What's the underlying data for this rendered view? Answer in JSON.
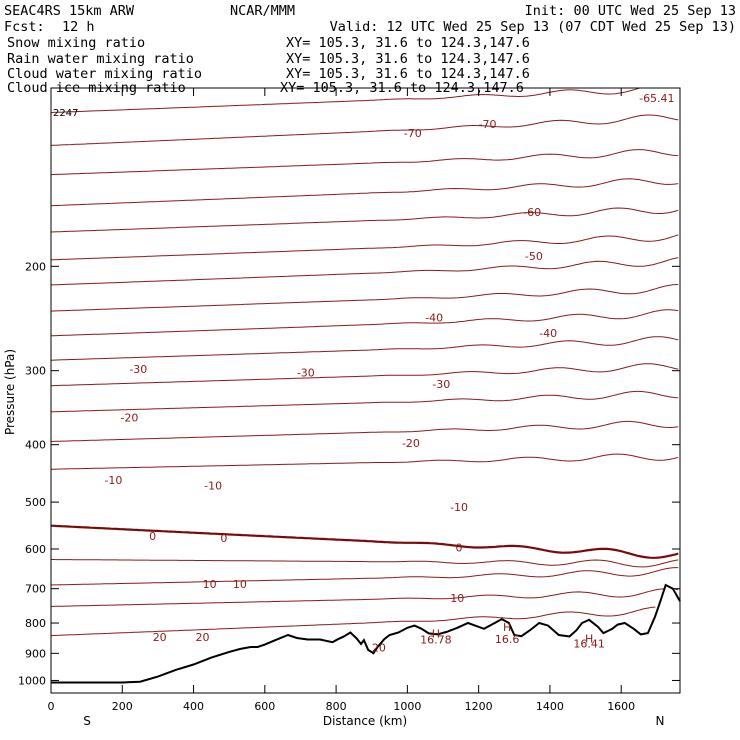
{
  "header": {
    "model": "SEAC4RS 15km ARW",
    "org": "NCAR/MMM",
    "init": "Init: 00 UTC Wed 25 Sep 13",
    "fcst_label": "Fcst:",
    "fcst_value": "12 h",
    "valid": "Valid: 12 UTC Wed 25 Sep 13 (07 CDT Wed 25 Sep 13)"
  },
  "legend": [
    {
      "name": "Snow mixing ratio",
      "xy": "XY= 105.3, 31.6 to 124.3,147.6",
      "color": "#000000"
    },
    {
      "name": "Rain water mixing ratio",
      "xy": "XY= 105.3, 31.6 to 124.3,147.6",
      "color": "#e00000"
    },
    {
      "name": "Cloud water mixing ratio",
      "xy": "XY= 105.3, 31.6 to 124.3,147.6",
      "color": "#0000e0"
    },
    {
      "name": "Cloud ice mixing ratio",
      "xy": "XY= 105.3, 31.6 to 124.3,147.6",
      "color": "#000000"
    }
  ],
  "chart_data": {
    "type": "line",
    "xlabel": "Distance (km)",
    "ylabel": "Pressure (hPa)",
    "xlim": [
      0,
      1765
    ],
    "ylim": [
      1050,
      100
    ],
    "y_scale": "log",
    "x_ticks": [
      0,
      200,
      400,
      600,
      800,
      1000,
      1200,
      1400,
      1600
    ],
    "y_ticks": [
      200,
      300,
      400,
      500,
      600,
      700,
      800,
      900,
      1000
    ],
    "x_end_labels": {
      "left": "S",
      "right": "N"
    },
    "corner_label": "2247",
    "line_color": "#8b1a1a",
    "zero_line_color": "#7a0a0a",
    "terrain_color": "#000000",
    "isotherms": [
      {
        "value": -70,
        "left_p": 110,
        "right_p": 100
      },
      {
        "value": -65,
        "left_p": 125,
        "right_p": 112
      },
      {
        "value": -60,
        "left_p": 140,
        "right_p": 128
      },
      {
        "value": -55,
        "left_p": 158,
        "right_p": 143
      },
      {
        "value": -50,
        "left_p": 175,
        "right_p": 160
      },
      {
        "value": -45,
        "left_p": 195,
        "right_p": 178
      },
      {
        "value": -40,
        "left_p": 215,
        "right_p": 196
      },
      {
        "value": -35,
        "left_p": 238,
        "right_p": 218
      },
      {
        "value": -30,
        "left_p": 262,
        "right_p": 240
      },
      {
        "value": -25,
        "left_p": 288,
        "right_p": 266
      },
      {
        "value": -20,
        "left_p": 318,
        "right_p": 295
      },
      {
        "value": -15,
        "left_p": 352,
        "right_p": 328
      },
      {
        "value": -10,
        "left_p": 395,
        "right_p": 368
      },
      {
        "value": -5,
        "left_p": 440,
        "right_p": 418
      },
      {
        "value": 0,
        "left_p": 548,
        "right_p": 615
      },
      {
        "value": 5,
        "left_p": 625,
        "right_p": 635
      },
      {
        "value": 10,
        "left_p": 690,
        "right_p": 655
      },
      {
        "value": 15,
        "left_p": 750,
        "right_p": 710
      },
      {
        "value": 20,
        "left_p": 840,
        "right_p": 760
      }
    ],
    "contour_labels": [
      {
        "text": "-70",
        "x": 1015,
        "p": 119
      },
      {
        "text": "-70",
        "x": 1225,
        "p": 115
      },
      {
        "text": "-65.41",
        "x": 1700,
        "p": 104
      },
      {
        "text": "-60",
        "x": 1350,
        "p": 162
      },
      {
        "text": "-50",
        "x": 1355,
        "p": 192
      },
      {
        "text": "-40",
        "x": 1075,
        "p": 244
      },
      {
        "text": "-40",
        "x": 1395,
        "p": 259
      },
      {
        "text": "-30",
        "x": 245,
        "p": 298
      },
      {
        "text": "-30",
        "x": 715,
        "p": 302
      },
      {
        "text": "-30",
        "x": 1095,
        "p": 316
      },
      {
        "text": "-20",
        "x": 220,
        "p": 360
      },
      {
        "text": "-20",
        "x": 1010,
        "p": 397
      },
      {
        "text": "-10",
        "x": 175,
        "p": 459
      },
      {
        "text": "-10",
        "x": 455,
        "p": 469
      },
      {
        "text": "-10",
        "x": 1145,
        "p": 510
      },
      {
        "text": "0",
        "x": 285,
        "p": 570
      },
      {
        "text": "0",
        "x": 485,
        "p": 575
      },
      {
        "text": "0",
        "x": 1145,
        "p": 597
      },
      {
        "text": "10",
        "x": 445,
        "p": 687
      },
      {
        "text": "10",
        "x": 530,
        "p": 687
      },
      {
        "text": "10",
        "x": 1140,
        "p": 726
      },
      {
        "text": "20",
        "x": 305,
        "p": 845
      },
      {
        "text": "20",
        "x": 425,
        "p": 845
      },
      {
        "text": "20",
        "x": 920,
        "p": 880
      }
    ],
    "highs": [
      {
        "mark": "H",
        "value": "16.78",
        "x": 1080,
        "p": 834,
        "vp": 853
      },
      {
        "mark": "H",
        "value": "16.6",
        "x": 1280,
        "p": 812,
        "vp": 852
      },
      {
        "mark": "H",
        "value": "16.41",
        "x": 1510,
        "p": 849,
        "vp": 866
      }
    ],
    "terrain": [
      [
        0,
        1008
      ],
      [
        200,
        1008
      ],
      [
        250,
        1005
      ],
      [
        300,
        985
      ],
      [
        350,
        960
      ],
      [
        400,
        940
      ],
      [
        450,
        915
      ],
      [
        500,
        895
      ],
      [
        530,
        885
      ],
      [
        560,
        878
      ],
      [
        580,
        878
      ],
      [
        600,
        870
      ],
      [
        630,
        855
      ],
      [
        665,
        838
      ],
      [
        690,
        848
      ],
      [
        720,
        853
      ],
      [
        755,
        853
      ],
      [
        790,
        862
      ],
      [
        805,
        852
      ],
      [
        820,
        844
      ],
      [
        840,
        830
      ],
      [
        858,
        850
      ],
      [
        870,
        868
      ],
      [
        878,
        855
      ],
      [
        890,
        888
      ],
      [
        905,
        900
      ],
      [
        915,
        880
      ],
      [
        935,
        852
      ],
      [
        950,
        838
      ],
      [
        975,
        830
      ],
      [
        1000,
        815
      ],
      [
        1020,
        808
      ],
      [
        1040,
        818
      ],
      [
        1060,
        833
      ],
      [
        1085,
        836
      ],
      [
        1110,
        828
      ],
      [
        1140,
        815
      ],
      [
        1170,
        800
      ],
      [
        1190,
        808
      ],
      [
        1215,
        818
      ],
      [
        1245,
        800
      ],
      [
        1265,
        788
      ],
      [
        1285,
        800
      ],
      [
        1300,
        838
      ],
      [
        1320,
        842
      ],
      [
        1345,
        822
      ],
      [
        1370,
        800
      ],
      [
        1395,
        808
      ],
      [
        1425,
        838
      ],
      [
        1455,
        843
      ],
      [
        1475,
        822
      ],
      [
        1490,
        800
      ],
      [
        1510,
        790
      ],
      [
        1535,
        812
      ],
      [
        1550,
        832
      ],
      [
        1575,
        818
      ],
      [
        1590,
        805
      ],
      [
        1610,
        800
      ],
      [
        1635,
        818
      ],
      [
        1655,
        836
      ],
      [
        1675,
        832
      ],
      [
        1695,
        780
      ],
      [
        1710,
        735
      ],
      [
        1725,
        690
      ],
      [
        1745,
        700
      ],
      [
        1765,
        735
      ]
    ]
  }
}
